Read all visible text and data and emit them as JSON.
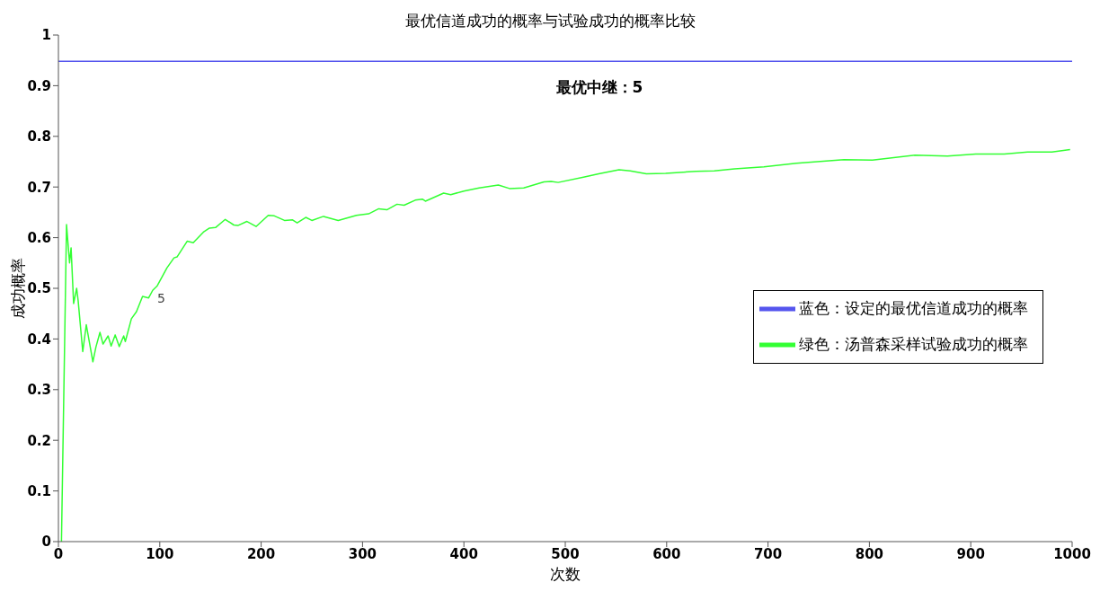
{
  "chart_data": {
    "type": "line",
    "title": "最优信道成功的概率与试验成功的概率比较",
    "xlabel": "次数",
    "ylabel": "成功概率",
    "xlim": [
      0,
      1000
    ],
    "xticks": [
      0,
      100,
      200,
      300,
      400,
      500,
      600,
      700,
      800,
      900,
      1000
    ],
    "ylim": [
      0,
      1
    ],
    "yticks": [
      0,
      {
        "value": 0.1,
        "label": "0.1"
      },
      {
        "value": 0.2,
        "label": "0.2"
      },
      {
        "value": 0.3,
        "label": "0.3"
      },
      {
        "value": 0.4,
        "label": "0.4"
      },
      {
        "value": 0.5,
        "label": "0.5"
      },
      {
        "value": 0.6,
        "label": "0.6"
      },
      {
        "value": 0.7,
        "label": "0.7"
      },
      {
        "value": 0.8,
        "label": "0.8"
      },
      {
        "value": 0.9,
        "label": "0.9"
      },
      1
    ],
    "grid": false,
    "legend": "right",
    "marker": "none",
    "line_style": "solid",
    "annotations": [
      "最优中继：5",
      {
        "text": "5",
        "x": 93,
        "y": 0.48
      }
    ],
    "series": [
      {
        "name": "蓝色：设定的最优信道成功的概率",
        "color": "#5555ee",
        "x": [
          0,
          1000
        ],
        "values": [
          0.948,
          0.948
        ]
      },
      {
        "name": "绿色：汤普森采样试验成功的概率",
        "color": "#33ff33",
        "x": [
          3,
          8,
          9,
          11,
          12.5,
          15,
          18,
          19.5,
          24,
          27.5,
          34,
          37,
          41,
          44,
          49,
          52,
          56,
          60,
          64.4,
          66,
          72,
          77,
          83,
          89,
          93,
          97.5,
          107,
          114,
          117,
          127,
          133,
          143,
          149,
          155,
          164.6,
          173,
          177,
          186,
          195,
          207,
          213,
          223,
          231,
          235.5,
          244,
          250,
          261.5,
          276,
          294,
          306,
          316,
          324,
          334,
          341,
          352,
          359,
          362,
          380,
          387,
          400,
          415,
          434,
          445,
          459,
          479,
          486,
          493,
          519,
          533,
          553,
          564,
          580,
          599,
          629,
          647,
          667,
          696,
          728,
          775,
          803,
          845,
          877,
          905,
          933,
          956,
          980,
          998
        ],
        "values": [
          0,
          0.626,
          0.6,
          0.55,
          0.58,
          0.47,
          0.5,
          0.475,
          0.375,
          0.428,
          0.355,
          0.384,
          0.413,
          0.39,
          0.406,
          0.386,
          0.408,
          0.385,
          0.406,
          0.395,
          0.44,
          0.454,
          0.484,
          0.481,
          0.496,
          0.505,
          0.54,
          0.56,
          0.562,
          0.593,
          0.59,
          0.611,
          0.619,
          0.62,
          0.636,
          0.625,
          0.624,
          0.632,
          0.622,
          0.644,
          0.643,
          0.634,
          0.635,
          0.629,
          0.64,
          0.634,
          0.642,
          0.634,
          0.644,
          0.647,
          0.657,
          0.655,
          0.666,
          0.664,
          0.674,
          0.676,
          0.672,
          0.688,
          0.685,
          0.692,
          0.698,
          0.704,
          0.697,
          0.698,
          0.71,
          0.711,
          0.709,
          0.72,
          0.726,
          0.734,
          0.732,
          0.726,
          0.727,
          0.731,
          0.732,
          0.736,
          0.74,
          0.747,
          0.754,
          0.753,
          0.763,
          0.761,
          0.765,
          0.765,
          0.769,
          0.769,
          0.774
        ]
      }
    ]
  }
}
